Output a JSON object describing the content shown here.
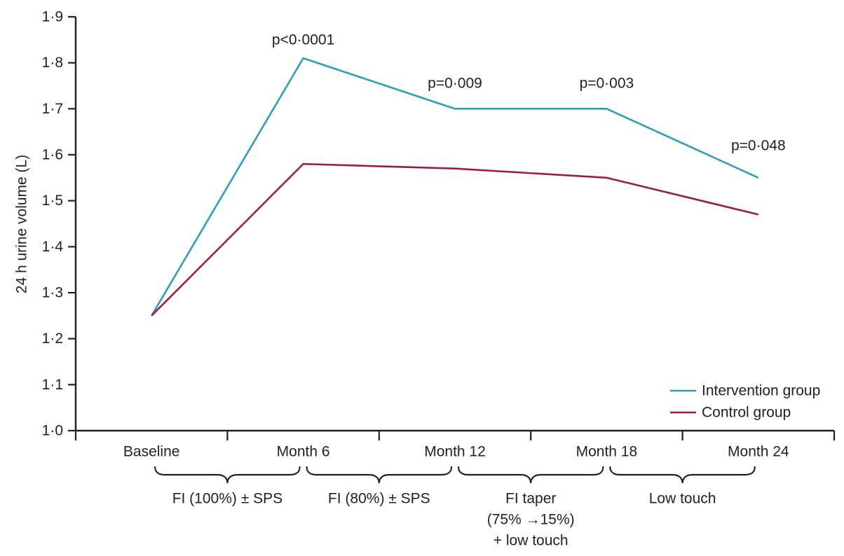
{
  "figure": {
    "background": "#ffffff",
    "text_color": "#231f20",
    "axis_color": "#231f20"
  },
  "chart_data": {
    "type": "line",
    "title": "",
    "xlabel": "",
    "ylabel": "24 h urine volume (L)",
    "ylim": [
      1.0,
      1.9
    ],
    "ytick_step": 0.1,
    "decimal_separator": "·",
    "grid": false,
    "categories": [
      "Baseline",
      "Month 6",
      "Month 12",
      "Month 18",
      "Month 24"
    ],
    "series": [
      {
        "name": "Intervention group",
        "color": "#2b9fba",
        "values": [
          1.25,
          1.81,
          1.7,
          1.7,
          1.55
        ]
      },
      {
        "name": "Control group",
        "color": "#a01c3e",
        "values": [
          1.25,
          1.58,
          1.57,
          1.55,
          1.47
        ]
      }
    ],
    "annotations": [
      {
        "text": "p<0·0001",
        "x_index": 1,
        "value": 1.85
      },
      {
        "text": "p=0·009",
        "x_index": 2,
        "value": 1.755
      },
      {
        "text": "p=0·003",
        "x_index": 3,
        "value": 1.755
      },
      {
        "text": "p=0·048",
        "x_index": 4,
        "value": 1.62
      }
    ],
    "phase_brackets": [
      {
        "lines": [
          "FI (100%) ± SPS"
        ],
        "from": 0,
        "to": 1
      },
      {
        "lines": [
          "FI (80%) ± SPS"
        ],
        "from": 1,
        "to": 2
      },
      {
        "lines": [
          "FI taper",
          "(75% →15%)",
          "+ low touch"
        ],
        "from": 2,
        "to": 3
      },
      {
        "lines": [
          "Low touch"
        ],
        "from": 3,
        "to": 4
      }
    ],
    "legend": {
      "position": "lower-right",
      "entries": [
        {
          "label": "Intervention group",
          "color": "#2b9fba"
        },
        {
          "label": "Control group",
          "color": "#a01c3e"
        }
      ]
    }
  }
}
